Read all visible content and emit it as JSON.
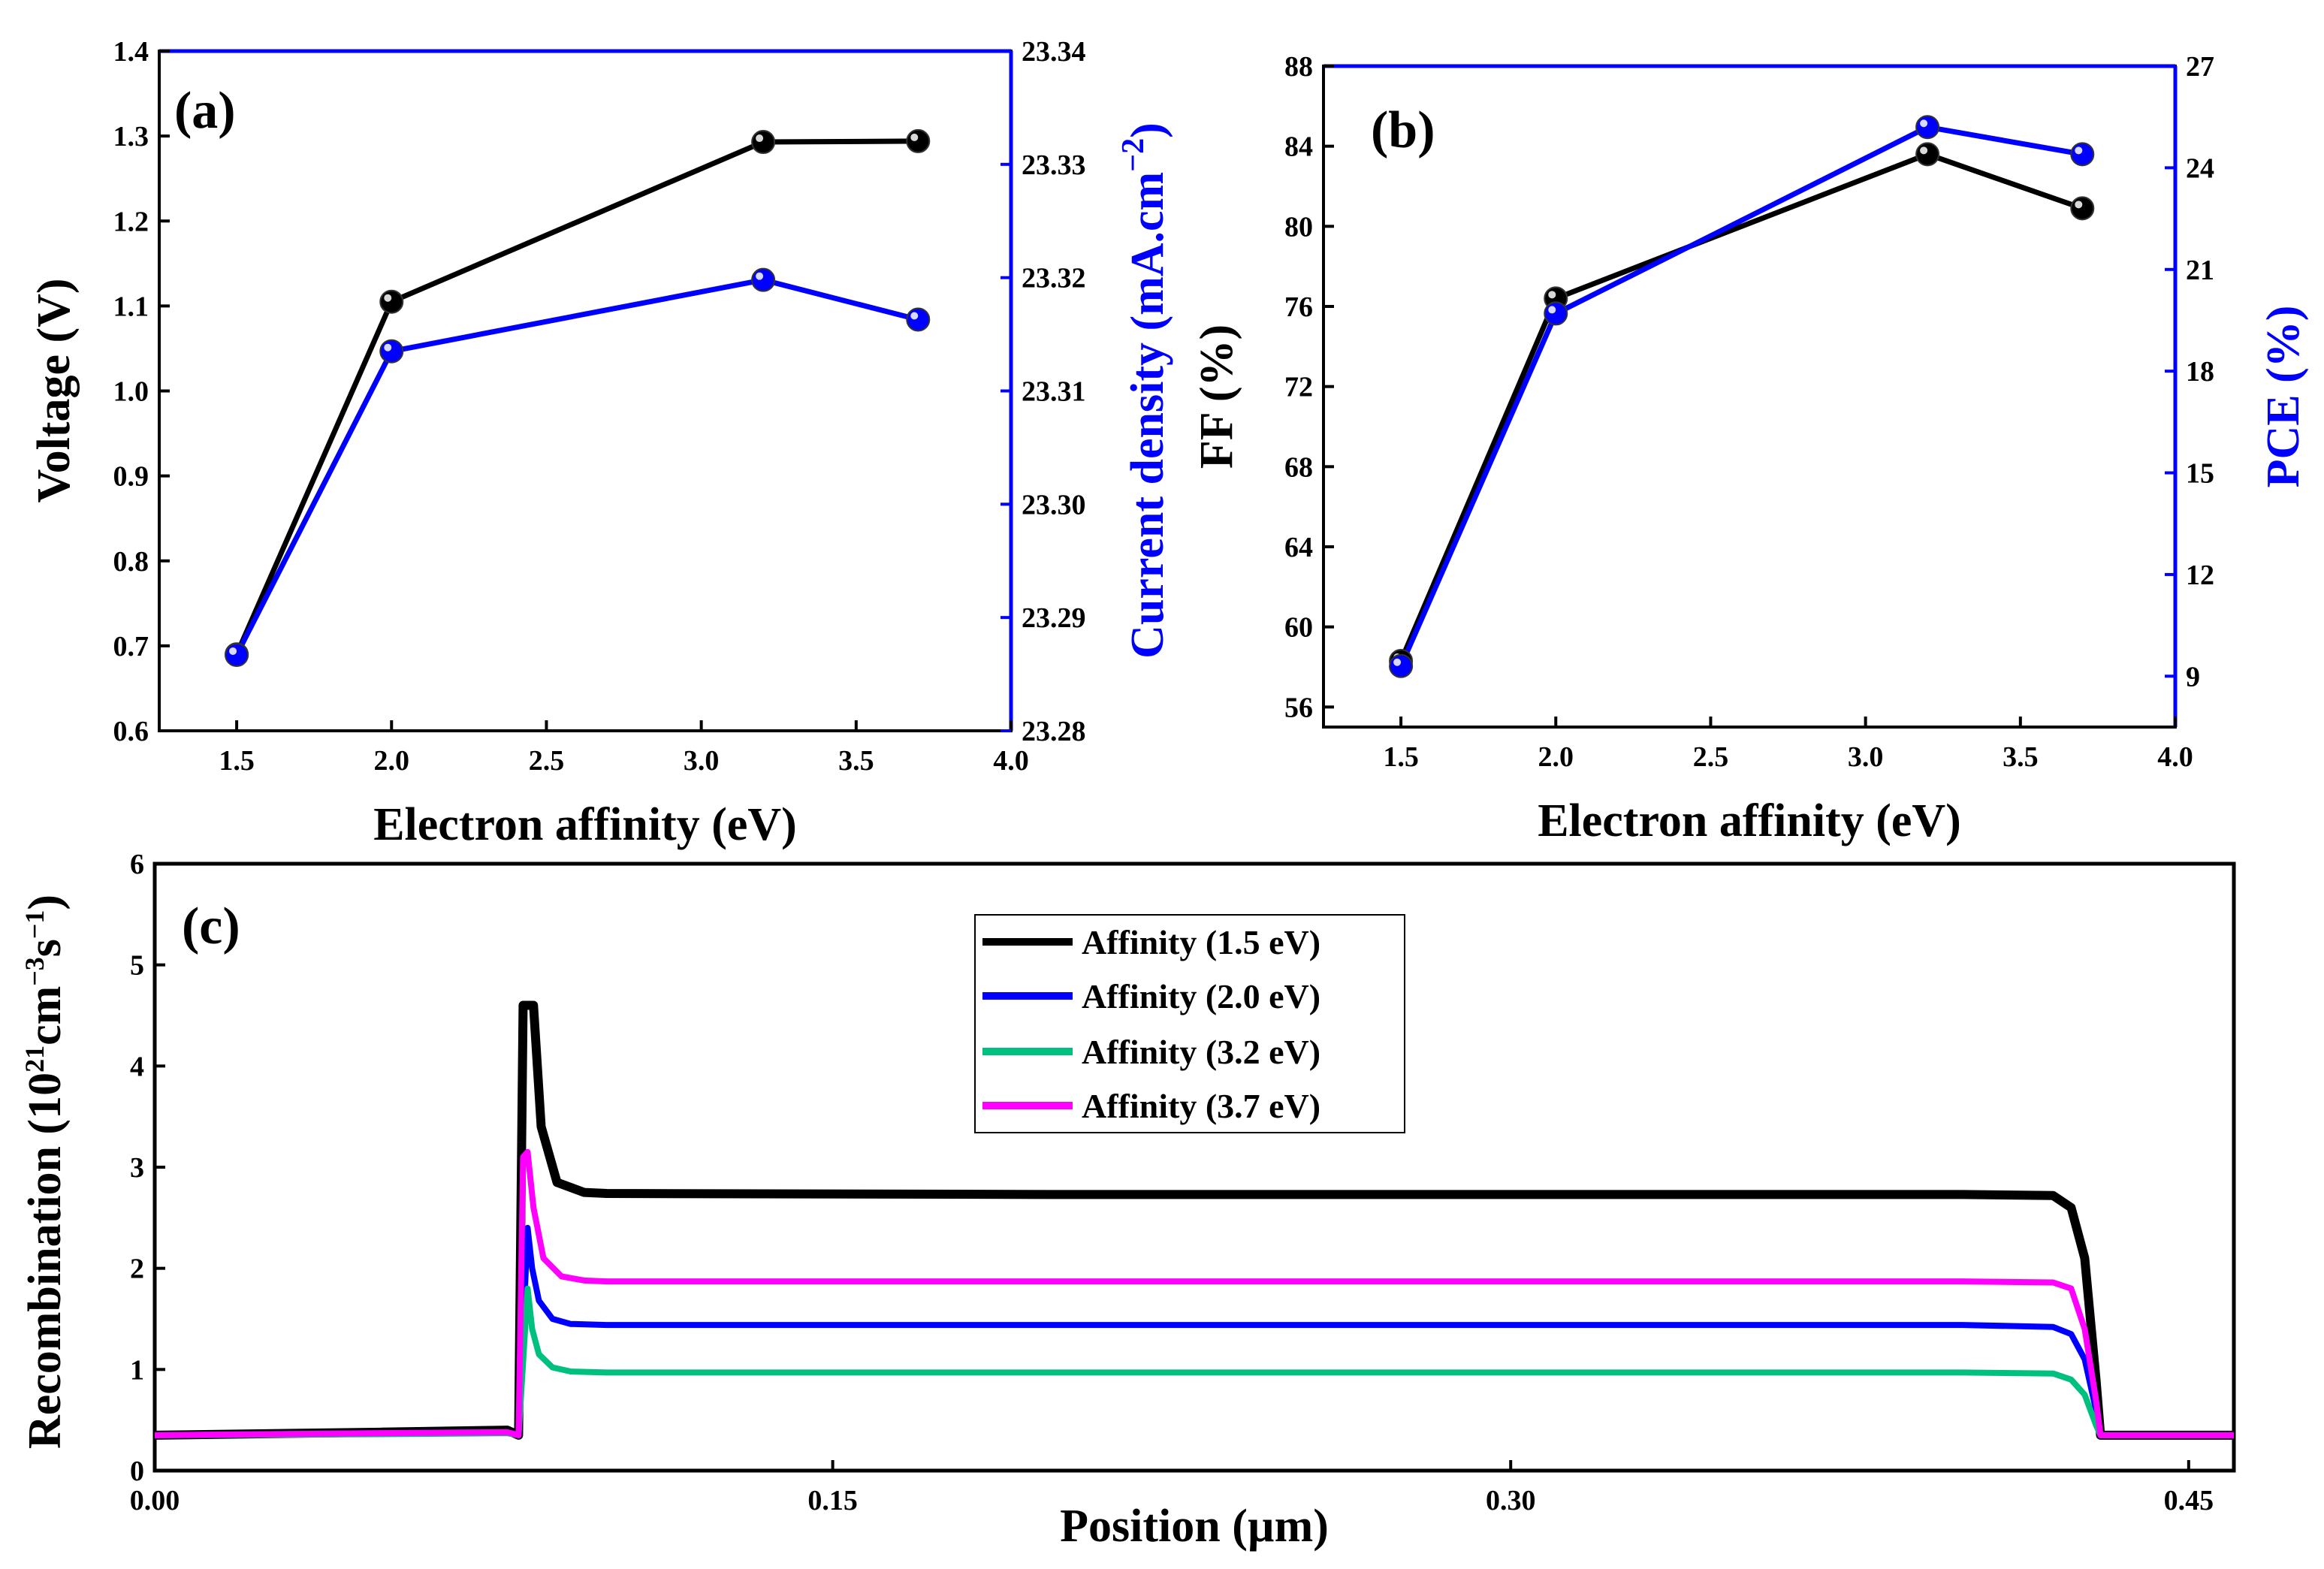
{
  "chart_data": [
    {
      "id": "a",
      "type": "line",
      "panel_label": "(a)",
      "xlabel": "Electron affinity (eV)",
      "ylabel": "Voltage (V)",
      "y2label": "Current density (mA.cm",
      "y2label_sup": "−2",
      "y2label_end": ")",
      "xlim": [
        1.25,
        4.0
      ],
      "ylim": [
        0.6,
        1.4
      ],
      "y2lim": [
        23.28,
        23.34
      ],
      "xticks": [
        "1.5",
        "2.0",
        "2.5",
        "3.0",
        "3.5",
        "4.0"
      ],
      "xtick_values": [
        1.5,
        2.0,
        2.5,
        3.0,
        3.5,
        4.0
      ],
      "yticks": [
        "0.6",
        "0.7",
        "0.8",
        "0.9",
        "1.0",
        "1.1",
        "1.2",
        "1.3",
        "1.4"
      ],
      "ytick_values": [
        0.6,
        0.7,
        0.8,
        0.9,
        1.0,
        1.1,
        1.2,
        1.3,
        1.4
      ],
      "y2ticks": [
        "23.28",
        "23.29",
        "23.30",
        "23.31",
        "23.32",
        "23.33",
        "23.34"
      ],
      "y2tick_values": [
        23.28,
        23.29,
        23.3,
        23.31,
        23.32,
        23.33,
        23.34
      ],
      "series": [
        {
          "name": "Voltage",
          "axis": "left",
          "color": "#000000",
          "x": [
            1.5,
            2.0,
            3.2,
            3.7
          ],
          "values": [
            0.69,
            1.105,
            1.293,
            1.294
          ]
        },
        {
          "name": "Current density",
          "axis": "right",
          "color": "#0000ff",
          "x": [
            1.5,
            2.0,
            3.2,
            3.7
          ],
          "values": [
            23.2867,
            23.3135,
            23.3198,
            23.3163
          ]
        }
      ]
    },
    {
      "id": "b",
      "type": "line",
      "panel_label": "(b)",
      "xlabel": "Electron affinity (eV)",
      "ylabel": "FF (%)",
      "y2label": "PCE (%)",
      "xlim": [
        1.25,
        4.0
      ],
      "ylim": [
        55,
        88
      ],
      "y2lim": [
        7.5,
        27
      ],
      "xticks": [
        "1.5",
        "2.0",
        "2.5",
        "3.0",
        "3.5",
        "4.0"
      ],
      "xtick_values": [
        1.5,
        2.0,
        2.5,
        3.0,
        3.5,
        4.0
      ],
      "yticks": [
        "56",
        "60",
        "64",
        "68",
        "72",
        "76",
        "80",
        "84",
        "88"
      ],
      "ytick_values": [
        56,
        60,
        64,
        68,
        72,
        76,
        80,
        84,
        88
      ],
      "y2ticks": [
        "9",
        "12",
        "15",
        "18",
        "21",
        "24",
        "27"
      ],
      "y2tick_values": [
        9,
        12,
        15,
        18,
        21,
        24,
        27
      ],
      "series": [
        {
          "name": "FF",
          "axis": "left",
          "color": "#000000",
          "x": [
            1.5,
            2.0,
            3.2,
            3.7
          ],
          "values": [
            58.3,
            76.4,
            83.6,
            80.9
          ]
        },
        {
          "name": "PCE",
          "axis": "right",
          "color": "#0000ff",
          "x": [
            1.5,
            2.0,
            3.2,
            3.7
          ],
          "values": [
            9.3,
            19.7,
            25.2,
            24.4
          ]
        }
      ]
    },
    {
      "id": "c",
      "type": "line",
      "panel_label": "(c)",
      "xlabel": "Position (µm)",
      "ylabel": "Recombination (10",
      "ylabel_sup1": "21",
      "ylabel_mid": "cm",
      "ylabel_sup2": "−3",
      "ylabel_mid2": "s",
      "ylabel_sup3": "−1",
      "ylabel_end": ")",
      "xlim": [
        0.0,
        0.46
      ],
      "ylim": [
        0,
        6
      ],
      "xticks": [
        "0.00",
        "0.15",
        "0.30",
        "0.45"
      ],
      "xtick_values": [
        0.0,
        0.15,
        0.3,
        0.45
      ],
      "yticks": [
        "0",
        "1",
        "2",
        "3",
        "4",
        "5",
        "6"
      ],
      "ytick_values": [
        0,
        1,
        2,
        3,
        4,
        5,
        6
      ],
      "legend_position": "top-center",
      "series": [
        {
          "name": "Affinity (1.5 eV)",
          "color": "#000000",
          "x": [
            0,
            0.05,
            0.078,
            0.0805,
            0.0815,
            0.0825,
            0.0838,
            0.0855,
            0.089,
            0.095,
            0.1,
            0.2,
            0.3,
            0.4,
            0.42,
            0.424,
            0.427,
            0.4295,
            0.4305,
            0.44,
            0.46
          ],
          "values": [
            0.35,
            0.38,
            0.4,
            0.35,
            4.6,
            4.6,
            4.6,
            3.4,
            2.85,
            2.75,
            2.74,
            2.73,
            2.73,
            2.73,
            2.72,
            2.6,
            2.1,
            0.9,
            0.35,
            0.35,
            0.35
          ]
        },
        {
          "name": "Affinity (2.0 eV)",
          "color": "#0000ff",
          "x": [
            0,
            0.05,
            0.078,
            0.0805,
            0.0825,
            0.0835,
            0.085,
            0.088,
            0.092,
            0.1,
            0.2,
            0.3,
            0.4,
            0.42,
            0.424,
            0.427,
            0.4295,
            0.4305,
            0.44,
            0.46
          ],
          "values": [
            0.35,
            0.37,
            0.38,
            0.35,
            2.4,
            2.0,
            1.68,
            1.5,
            1.45,
            1.44,
            1.44,
            1.44,
            1.44,
            1.42,
            1.35,
            1.1,
            0.6,
            0.35,
            0.35,
            0.35
          ]
        },
        {
          "name": "Affinity (3.2 eV)",
          "color": "#00c080",
          "x": [
            0,
            0.05,
            0.078,
            0.0805,
            0.0825,
            0.0835,
            0.085,
            0.088,
            0.092,
            0.1,
            0.2,
            0.3,
            0.4,
            0.42,
            0.424,
            0.427,
            0.4295,
            0.4305,
            0.44,
            0.46
          ],
          "values": [
            0.35,
            0.36,
            0.37,
            0.35,
            1.8,
            1.4,
            1.15,
            1.02,
            0.98,
            0.97,
            0.97,
            0.97,
            0.97,
            0.96,
            0.9,
            0.75,
            0.45,
            0.35,
            0.35,
            0.35
          ]
        },
        {
          "name": "Affinity (3.7 eV)",
          "color": "#ff00ff",
          "x": [
            0,
            0.05,
            0.078,
            0.0805,
            0.0815,
            0.0825,
            0.0838,
            0.086,
            0.09,
            0.095,
            0.1,
            0.2,
            0.3,
            0.4,
            0.42,
            0.424,
            0.427,
            0.4295,
            0.4305,
            0.44,
            0.46
          ],
          "values": [
            0.35,
            0.37,
            0.38,
            0.35,
            3.1,
            3.15,
            2.6,
            2.1,
            1.92,
            1.88,
            1.87,
            1.87,
            1.87,
            1.87,
            1.86,
            1.8,
            1.4,
            0.7,
            0.35,
            0.35,
            0.35
          ]
        }
      ]
    }
  ]
}
